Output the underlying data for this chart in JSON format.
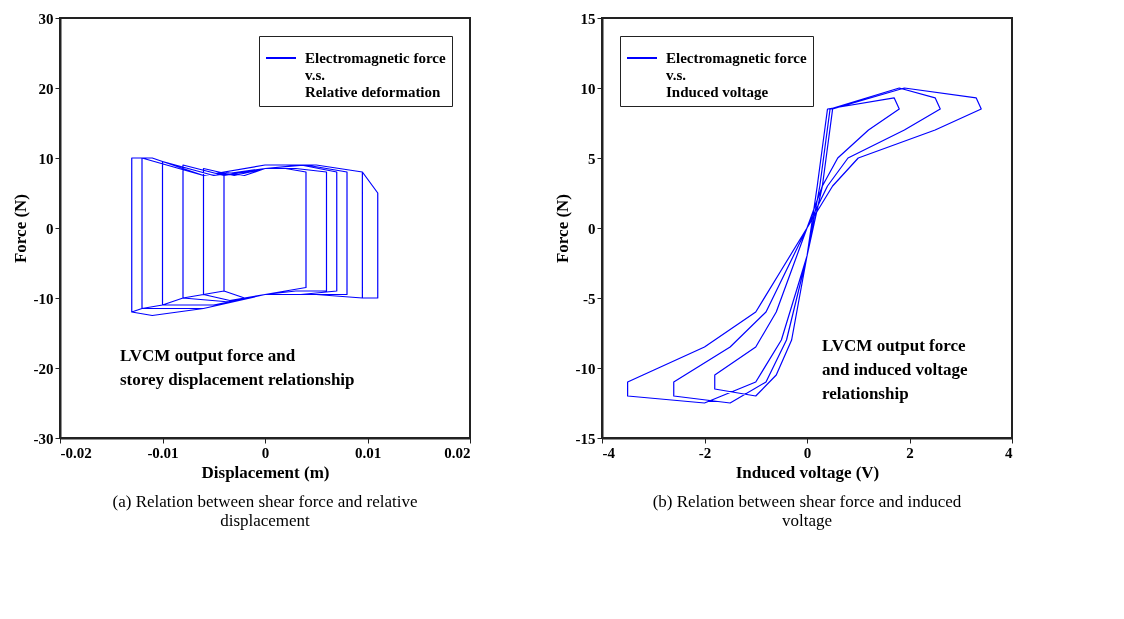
{
  "chart_data": [
    {
      "type": "line",
      "title": "(a) Relation between shear force and relative\ndisplacement",
      "xlabel": "Displacement (m)",
      "ylabel": "Force (N)",
      "xlim": [
        -0.02,
        0.02
      ],
      "xticks": [
        -0.02,
        -0.01,
        0,
        0.01,
        0.02
      ],
      "ylim": [
        -30,
        30
      ],
      "yticks": [
        -30,
        -20,
        -10,
        0,
        10,
        20,
        30
      ],
      "legend": "top right",
      "grid": false,
      "annotations": [
        "LVCM output force and\nstorey displacement relationship"
      ],
      "series": [
        {
          "name": "Electromagnetic force\nv.s.\nRelative deformation",
          "color": "#0000ff",
          "x": [
            -0.004,
            -0.004,
            -0.002,
            0,
            0.002,
            0.004,
            0.004,
            0.002,
            0,
            -0.002,
            -0.004,
            -0.006,
            -0.006,
            -0.003,
            0,
            0.003,
            0.006,
            0.006,
            0.003,
            0,
            -0.003,
            -0.006,
            -0.008,
            -0.008,
            -0.004,
            0,
            0.0035,
            0.007,
            0.007,
            0.0035,
            0,
            -0.004,
            -0.008,
            -0.01,
            -0.01,
            -0.005,
            0,
            0.004,
            0.008,
            0.008,
            0.004,
            0,
            -0.005,
            -0.01,
            -0.012,
            -0.012,
            -0.006,
            0,
            0.005,
            0.0095,
            0.0095,
            0.005,
            0,
            -0.006,
            -0.012,
            -0.013,
            -0.013,
            -0.011,
            -0.006,
            0,
            0.005,
            0.0095,
            0.011,
            0.011,
            0.0095,
            0.005,
            0,
            -0.006,
            -0.011,
            -0.013
          ],
          "values": [
            -9,
            8,
            7.5,
            8.5,
            8.5,
            8,
            -8.5,
            -9,
            -9.5,
            -10,
            -9,
            -9.5,
            8.5,
            7.5,
            8.5,
            8.5,
            8,
            -9,
            -9,
            -9.5,
            -10.5,
            -9.5,
            -10,
            9,
            7.5,
            8.5,
            9,
            8,
            -9,
            -9.5,
            -9.5,
            -10.5,
            -10,
            -11,
            9.5,
            7.5,
            8.5,
            9,
            8,
            -9.5,
            -9.5,
            -9.5,
            -11,
            -11,
            -11.5,
            10,
            7.5,
            9,
            9,
            8,
            -10,
            -9.5,
            -9.5,
            -11.5,
            -11.5,
            -12,
            10,
            10,
            7.5,
            9,
            9,
            8,
            5,
            -10,
            -10,
            -9.5,
            -9.5,
            -11.5,
            -12.5,
            -12
          ]
        }
      ]
    },
    {
      "type": "line",
      "title": "(b) Relation between shear force and induced\nvoltage",
      "xlabel": "Induced voltage (V)",
      "ylabel": "Force (N)",
      "xlim": [
        -4,
        4
      ],
      "xticks": [
        -4,
        -2,
        0,
        2,
        4
      ],
      "ylim": [
        -15,
        15
      ],
      "yticks": [
        -15,
        -10,
        -5,
        0,
        5,
        10,
        15
      ],
      "legend": "top left",
      "grid": false,
      "annotations": [
        "LVCM output force\nand induced voltage\nrelationship"
      ],
      "series": [
        {
          "name": "Electromagnetic force\nv.s.\nInduced voltage",
          "color": "#0000ff",
          "x": [
            0.4,
            1.7,
            1.8,
            1.2,
            0.6,
            0.3,
            0,
            -0.3,
            -0.6,
            -1,
            -1.8,
            -1.8,
            -1,
            -0.6,
            -0.3,
            0,
            0.2,
            0.4,
            0.45,
            1.8,
            2.5,
            2.6,
            1.9,
            0.8,
            0.4,
            0,
            -0.4,
            -0.8,
            -1.5,
            -2.6,
            -2.6,
            -1.5,
            -0.8,
            -0.4,
            0,
            0.25,
            0.45,
            0.5,
            1.9,
            3.3,
            3.4,
            2.5,
            1,
            0.5,
            0,
            -0.5,
            -1,
            -2,
            -3.5,
            -3.5,
            -2,
            -1,
            -0.5,
            0,
            0.3,
            0.5
          ],
          "values": [
            8.5,
            9.3,
            8.5,
            7,
            5,
            3,
            0,
            -3,
            -6,
            -8.5,
            -10.5,
            -11.5,
            -12,
            -10.5,
            -8,
            -2,
            3,
            8.5,
            8.5,
            10,
            9.3,
            8.5,
            7,
            5,
            3,
            0,
            -3,
            -6,
            -8.5,
            -11,
            -12,
            -12.5,
            -11,
            -8,
            -2,
            3,
            8.5,
            8.5,
            10,
            9.3,
            8.5,
            7,
            5,
            3,
            0,
            -3,
            -6,
            -8.5,
            -11,
            -12,
            -12.5,
            -11,
            -8,
            -2,
            3,
            8.5
          ]
        }
      ]
    }
  ]
}
